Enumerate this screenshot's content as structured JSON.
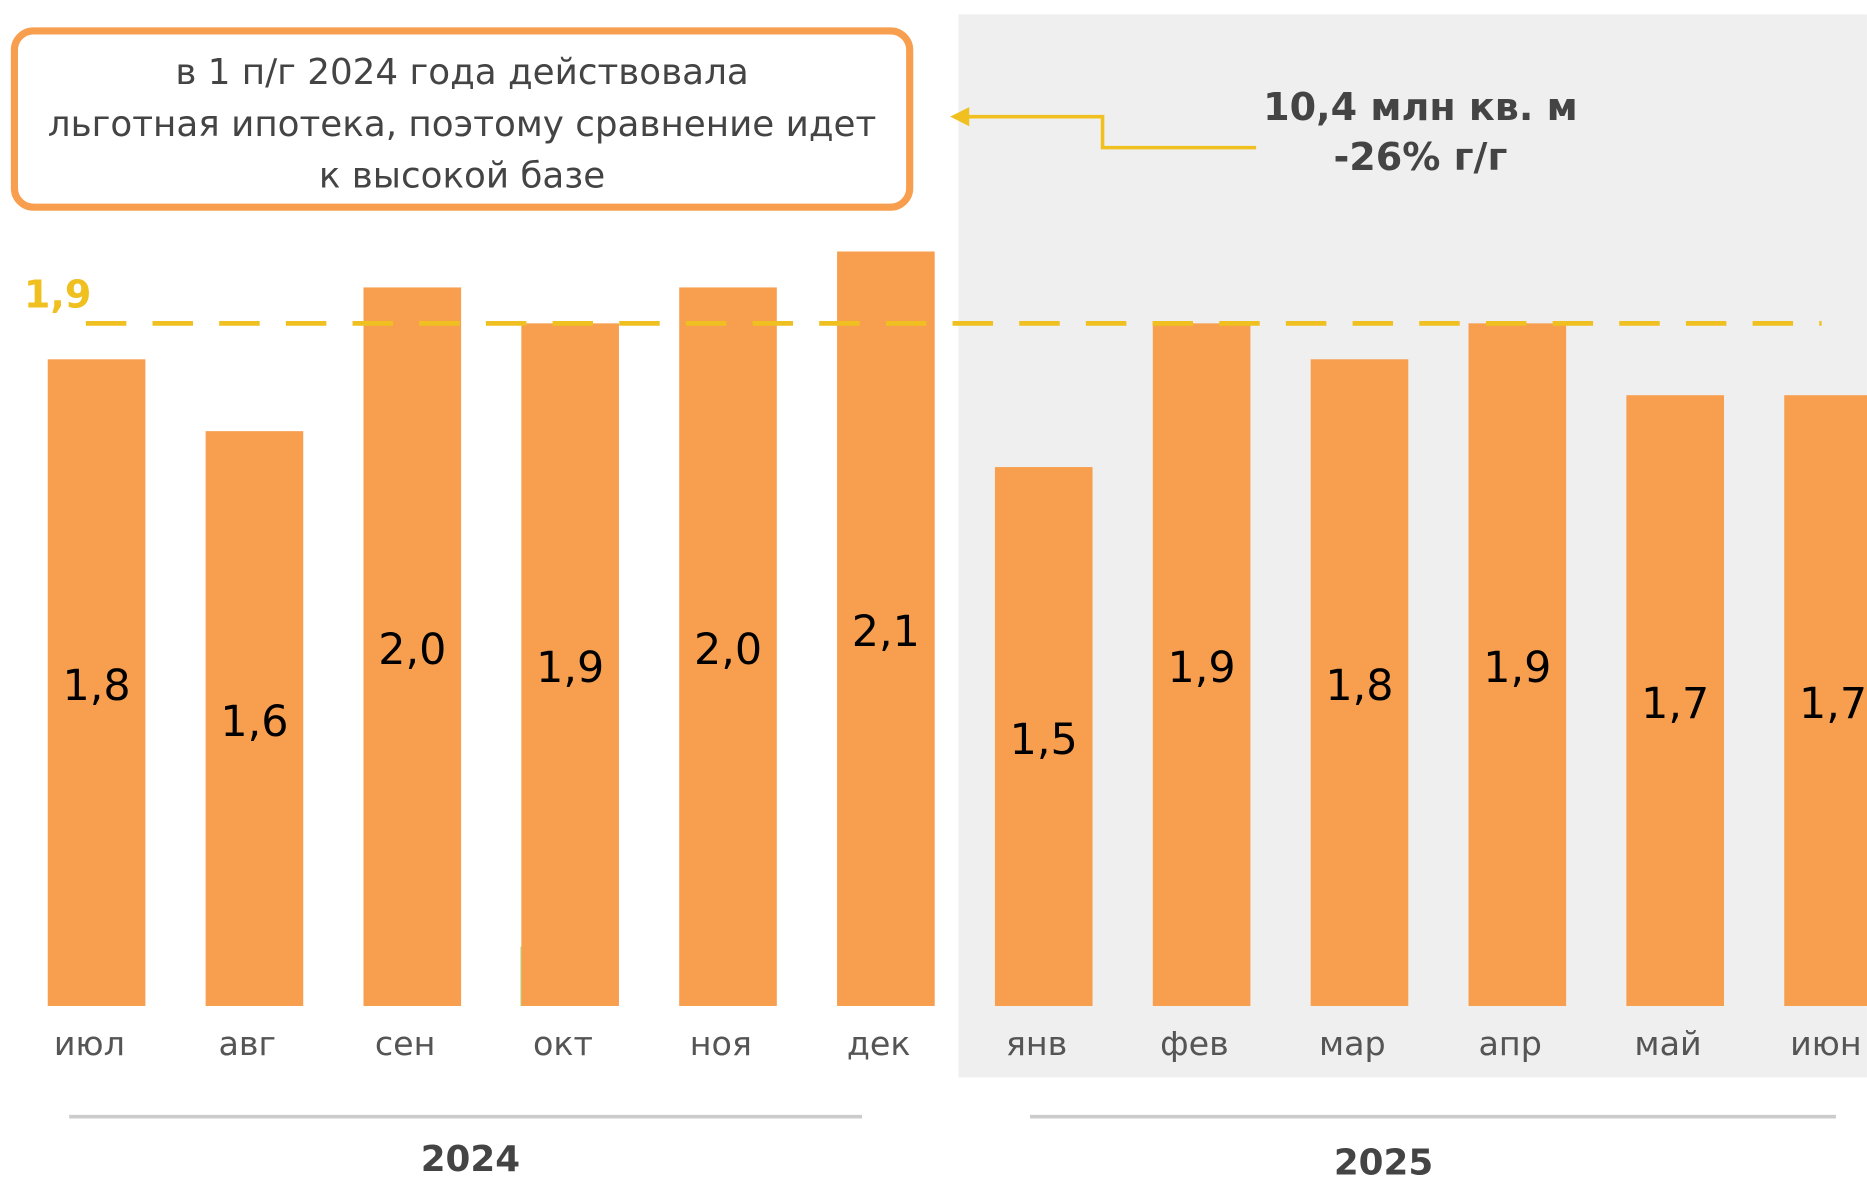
{
  "chart_data": {
    "type": "bar",
    "categories": [
      "июл",
      "авг",
      "сен",
      "окт",
      "ноя",
      "дек",
      "янв",
      "фев",
      "мар",
      "апр",
      "май",
      "июн"
    ],
    "values": [
      1.8,
      1.6,
      2.0,
      1.9,
      2.0,
      2.1,
      1.5,
      1.9,
      1.8,
      1.9,
      1.7,
      1.7
    ],
    "value_labels": [
      "1,8",
      "1,6",
      "2,0",
      "1,9",
      "2,0",
      "2,1",
      "1,5",
      "1,9",
      "1,8",
      "1,9",
      "1,7",
      "1,7"
    ],
    "color": "#f79f4f",
    "ylim": [
      0,
      2.8
    ],
    "reference_line": {
      "value": 1.9,
      "label": "1,9",
      "color": "#f0c020"
    },
    "groups": [
      "2024",
      "2025"
    ],
    "note": [
      "в  1 п/г 2024 года действовала",
      "льготная ипотека, поэтому сравнение идет",
      "к высокой базе"
    ],
    "callout": [
      "10,4 млн кв. м",
      "-26% г/г"
    ]
  }
}
